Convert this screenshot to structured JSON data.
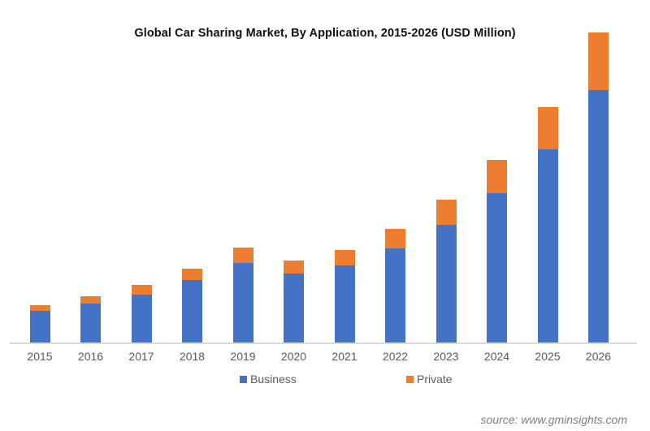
{
  "chart_data": {
    "type": "bar",
    "stacked": true,
    "title": "Global  Car Sharing Market, By  Application,  2015-2026 (USD Million)",
    "xlabel": "",
    "ylabel": "",
    "y_axis_visible": false,
    "value_note": "Relative bar heights (no y-axis values shown); units proportional to pixels",
    "categories": [
      "2015",
      "2016",
      "2017",
      "2018",
      "2019",
      "2020",
      "2021",
      "2022",
      "2023",
      "2024",
      "2025",
      "2026"
    ],
    "series": [
      {
        "name": "Business",
        "color": "#4472c4",
        "values": [
          40,
          49,
          60,
          78,
          99,
          86,
          96,
          117,
          146,
          185,
          239,
          312
        ]
      },
      {
        "name": "Private",
        "color": "#ed7d31",
        "values": [
          7,
          9,
          12,
          14,
          19,
          16,
          19,
          24,
          31,
          41,
          52,
          71
        ]
      }
    ],
    "ylim": [
      0,
      383
    ],
    "grid": false,
    "legend_position": "bottom"
  },
  "legend": {
    "business": "Business",
    "private": "Private"
  },
  "source": "source: www.gminsights.com"
}
